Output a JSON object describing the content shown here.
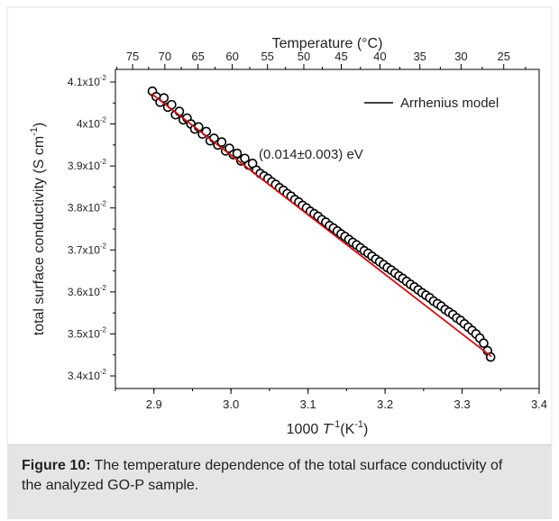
{
  "chart_data": {
    "type": "scatter",
    "xlabel_prefix": "1000 ",
    "xlabel_var": "T",
    "xlabel_sup": "-1",
    "xlabel_unit_open": "(K",
    "xlabel_unit_sup": "-1",
    "xlabel_unit_close": ")",
    "ylabel_main": "total surface conductivity (S cm",
    "ylabel_sup": "-1",
    "ylabel_close": ")",
    "top_axis_label": "Temperature (°C)",
    "xlim": [
      2.85,
      3.4
    ],
    "ylim": [
      3.37,
      4.13
    ],
    "x_ticks": [
      2.9,
      3.0,
      3.1,
      3.2,
      3.3,
      3.4
    ],
    "x_tick_labels": [
      "2.9",
      "3.0",
      "3.1",
      "3.2",
      "3.3",
      "3.4"
    ],
    "y_ticks": [
      3.4,
      3.5,
      3.6,
      3.7,
      3.8,
      3.9,
      4.0,
      4.1
    ],
    "y_tick_labels": [
      {
        "mant": "3.4x10",
        "exp": "-2"
      },
      {
        "mant": "3.5x10",
        "exp": "-2"
      },
      {
        "mant": "3.6x10",
        "exp": "-2"
      },
      {
        "mant": "3.7x10",
        "exp": "-2"
      },
      {
        "mant": "3.8x10",
        "exp": "-2"
      },
      {
        "mant": "3.9x10",
        "exp": "-2"
      },
      {
        "mant": "4x10",
        "exp": "-2"
      },
      {
        "mant": "4.1x10",
        "exp": "-2"
      }
    ],
    "top_ticks_celsius": [
      75,
      70,
      65,
      60,
      55,
      50,
      45,
      40,
      35,
      30,
      25
    ],
    "top_tick_labels": [
      "75",
      "70",
      "65",
      "60",
      "55",
      "50",
      "45",
      "40",
      "35",
      "30",
      "25"
    ],
    "series": [
      {
        "marker": "open-circle",
        "color": "#000000",
        "x": [
          2.898,
          2.903,
          2.908,
          2.913,
          2.918,
          2.923,
          2.928,
          2.933,
          2.938,
          2.943,
          2.948,
          2.953,
          2.958,
          2.963,
          2.968,
          2.973,
          2.978,
          2.983,
          2.988,
          2.993,
          2.998,
          3.003,
          3.008,
          3.013,
          3.018,
          3.023,
          3.028,
          3.033,
          3.038,
          3.043,
          3.048,
          3.053,
          3.058,
          3.063,
          3.068,
          3.073,
          3.078,
          3.083,
          3.088,
          3.093,
          3.098,
          3.103,
          3.108,
          3.113,
          3.118,
          3.123,
          3.128,
          3.133,
          3.138,
          3.143,
          3.148,
          3.153,
          3.158,
          3.163,
          3.168,
          3.173,
          3.178,
          3.183,
          3.188,
          3.193,
          3.198,
          3.203,
          3.208,
          3.213,
          3.218,
          3.223,
          3.228,
          3.233,
          3.238,
          3.243,
          3.248,
          3.253,
          3.258,
          3.263,
          3.268,
          3.273,
          3.278,
          3.283,
          3.288,
          3.293,
          3.298,
          3.303,
          3.308,
          3.313,
          3.318,
          3.323,
          3.328,
          3.333,
          3.337
        ],
        "y": [
          4.078,
          4.065,
          4.052,
          4.062,
          4.04,
          4.046,
          4.022,
          4.03,
          4.01,
          4.014,
          4.0,
          3.988,
          3.993,
          3.976,
          3.982,
          3.96,
          3.966,
          3.95,
          3.957,
          3.936,
          3.942,
          3.927,
          3.93,
          3.912,
          3.918,
          3.902,
          3.906,
          3.89,
          3.882,
          3.876,
          3.87,
          3.862,
          3.856,
          3.848,
          3.842,
          3.834,
          3.828,
          3.82,
          3.814,
          3.806,
          3.8,
          3.792,
          3.786,
          3.78,
          3.772,
          3.766,
          3.758,
          3.752,
          3.745,
          3.738,
          3.732,
          3.725,
          3.718,
          3.712,
          3.705,
          3.698,
          3.692,
          3.685,
          3.678,
          3.672,
          3.665,
          3.658,
          3.652,
          3.645,
          3.638,
          3.632,
          3.625,
          3.618,
          3.612,
          3.605,
          3.598,
          3.592,
          3.586,
          3.578,
          3.572,
          3.566,
          3.558,
          3.552,
          3.546,
          3.538,
          3.532,
          3.524,
          3.516,
          3.508,
          3.5,
          3.49,
          3.478,
          3.46,
          3.445
        ]
      },
      {
        "name": "Arrhenius model",
        "type": "line",
        "color": "#cc1111",
        "x": [
          2.897,
          3.338
        ],
        "y": [
          4.072,
          3.446
        ]
      }
    ],
    "annotation": "(0.014±0.003) eV",
    "legend_position": "top-right"
  },
  "caption": {
    "label": "Figure 10:",
    "text": " The temperature dependence of the total surface conductivity of the analyzed GO-P sample."
  }
}
